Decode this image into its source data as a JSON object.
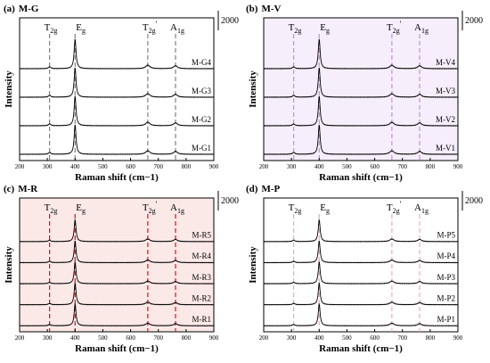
{
  "chart_data": [
    {
      "type": "line",
      "panel_label": "(a)",
      "panel_title": "M-G",
      "xlabel": "Raman shift (cm−1)",
      "ylabel": "Intensity",
      "xlim": [
        200,
        900
      ],
      "xticks": [
        200,
        300,
        400,
        500,
        600,
        700,
        800,
        900
      ],
      "scale_bar_label": "2000",
      "background": "#ffffff",
      "guide_color": "#808080",
      "peaks": [
        {
          "base": "T",
          "sub": "2g",
          "prime": "",
          "x": 308
        },
        {
          "base": "E",
          "sub": "g",
          "prime": "",
          "x": 400
        },
        {
          "base": "T",
          "sub": "2g",
          "prime": "'",
          "x": 662
        },
        {
          "base": "A",
          "sub": "1g",
          "prime": "",
          "x": 762
        }
      ],
      "series": [
        {
          "name": "M-G1"
        },
        {
          "name": "M-G2"
        },
        {
          "name": "M-G3"
        },
        {
          "name": "M-G4"
        }
      ]
    },
    {
      "type": "line",
      "panel_label": "(b)",
      "panel_title": "M-V",
      "xlabel": "Raman shift (cm−1)",
      "ylabel": "Intensity",
      "xlim": [
        200,
        900
      ],
      "xticks": [
        200,
        300,
        400,
        500,
        600,
        700,
        800,
        900
      ],
      "scale_bar_label": "2000",
      "background": "#f6eefb",
      "guide_color": "#c98fd6",
      "peaks": [
        {
          "base": "T",
          "sub": "2g",
          "prime": "",
          "x": 308
        },
        {
          "base": "E",
          "sub": "g",
          "prime": "",
          "x": 400
        },
        {
          "base": "T",
          "sub": "2g",
          "prime": "'",
          "x": 662
        },
        {
          "base": "A",
          "sub": "1g",
          "prime": "",
          "x": 762
        }
      ],
      "series": [
        {
          "name": "M-V1"
        },
        {
          "name": "M-V2"
        },
        {
          "name": "M-V3"
        },
        {
          "name": "M-V4"
        }
      ]
    },
    {
      "type": "line",
      "panel_label": "(c)",
      "panel_title": "M-R",
      "xlabel": "Raman shift (cm−1)",
      "ylabel": "Intensity",
      "xlim": [
        200,
        900
      ],
      "xticks": [
        200,
        300,
        400,
        500,
        600,
        700,
        800,
        900
      ],
      "scale_bar_label": "2000",
      "background": "#fbe9e7",
      "guide_color": "#e01010",
      "peaks": [
        {
          "base": "T",
          "sub": "2g",
          "prime": "",
          "x": 308
        },
        {
          "base": "E",
          "sub": "g",
          "prime": "",
          "x": 400
        },
        {
          "base": "T",
          "sub": "2g",
          "prime": "'",
          "x": 662
        },
        {
          "base": "A",
          "sub": "1g",
          "prime": "",
          "x": 762
        }
      ],
      "series": [
        {
          "name": "M-R1"
        },
        {
          "name": "M-R2"
        },
        {
          "name": "M-R3"
        },
        {
          "name": "M-R4"
        },
        {
          "name": "M-R5"
        }
      ]
    },
    {
      "type": "line",
      "panel_label": "(d)",
      "panel_title": "M-P",
      "xlabel": "Raman shift (cm−1)",
      "ylabel": "Intensity",
      "xlim": [
        200,
        900
      ],
      "xticks": [
        200,
        300,
        400,
        500,
        600,
        700,
        800,
        900
      ],
      "scale_bar_label": "2000",
      "background": "#ffffff",
      "guide_color": "#f0a6c8",
      "peaks": [
        {
          "base": "T",
          "sub": "2g",
          "prime": "",
          "x": 308
        },
        {
          "base": "E",
          "sub": "g",
          "prime": "",
          "x": 400
        },
        {
          "base": "T",
          "sub": "2g",
          "prime": "'",
          "x": 662
        },
        {
          "base": "A",
          "sub": "1g",
          "prime": "",
          "x": 762
        }
      ],
      "series": [
        {
          "name": "M-P1"
        },
        {
          "name": "M-P2"
        },
        {
          "name": "M-P3"
        },
        {
          "name": "M-P4"
        },
        {
          "name": "M-P5"
        }
      ]
    }
  ]
}
